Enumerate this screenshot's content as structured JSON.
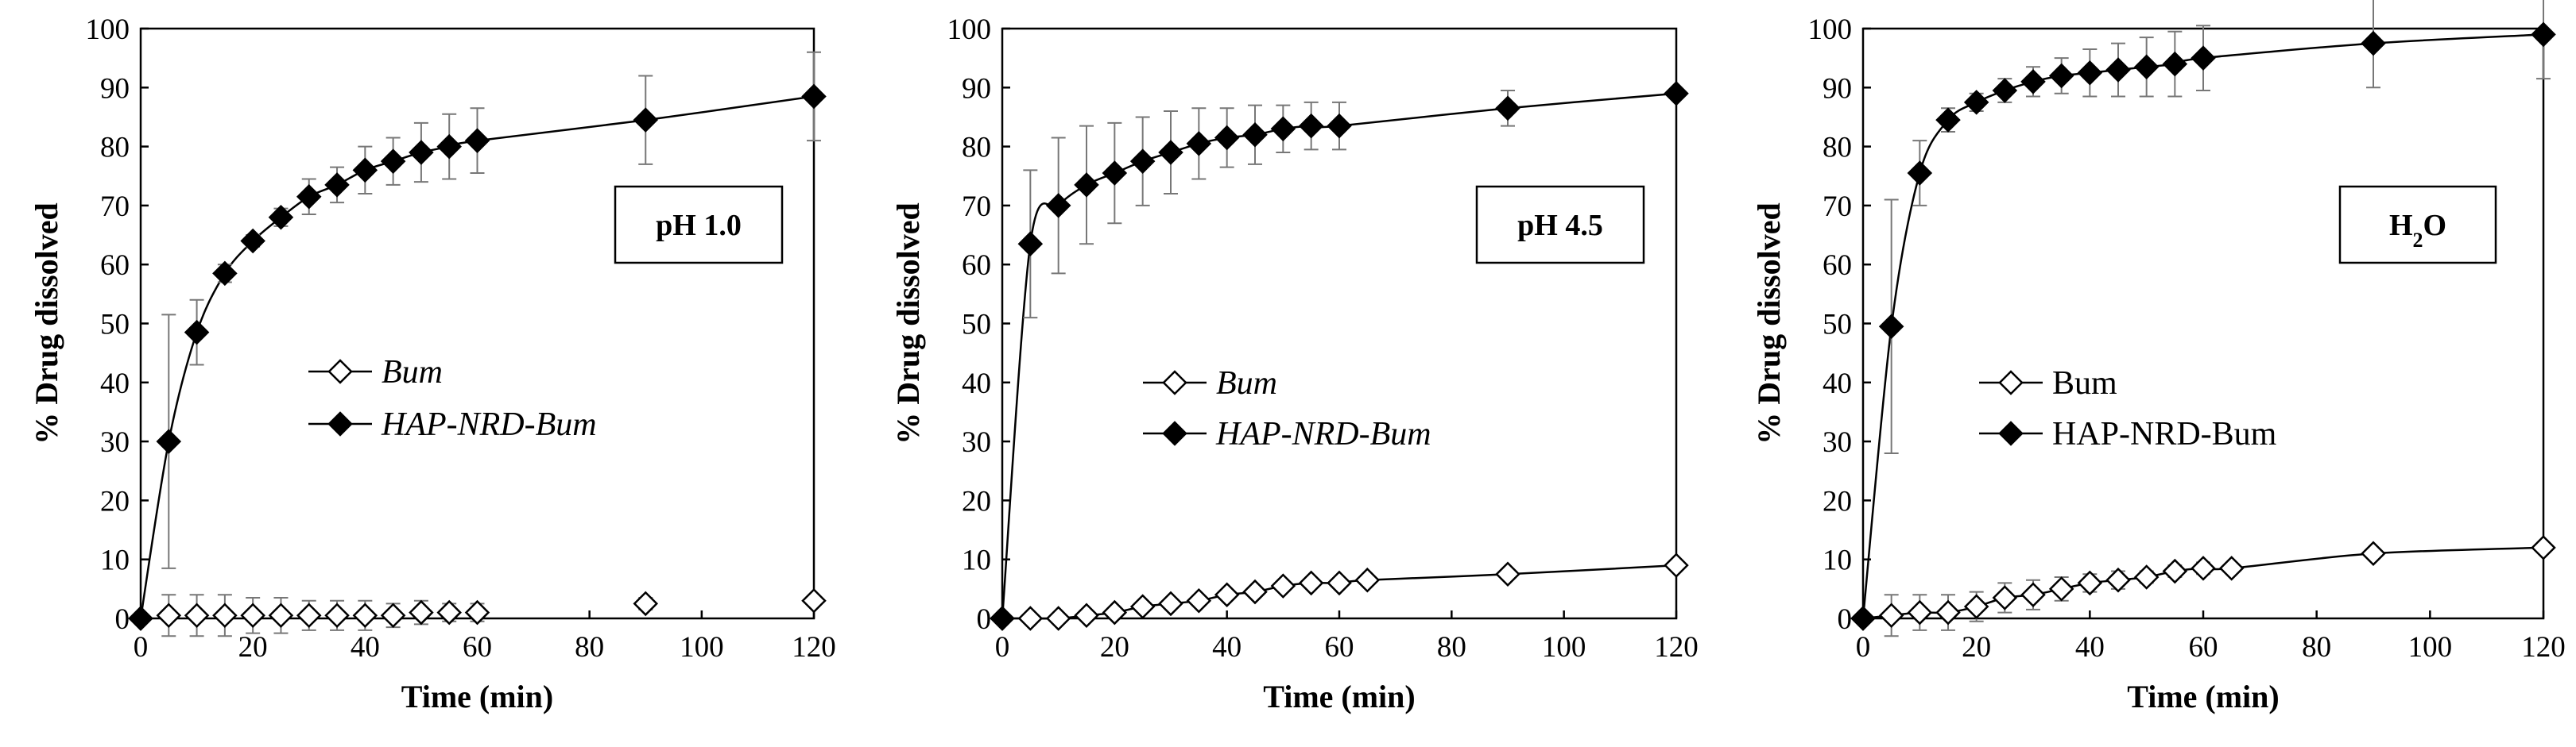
{
  "chart_data": [
    {
      "type": "line",
      "title": "",
      "box_label": "pH 1.0",
      "box_label_sub": "",
      "xlabel": "Time (min)",
      "ylabel": "% Drug dissolved",
      "xlim": [
        0,
        120
      ],
      "ylim": [
        0,
        100
      ],
      "xticks": [
        0,
        20,
        40,
        60,
        80,
        100,
        120
      ],
      "yticks": [
        0,
        10,
        20,
        30,
        40,
        50,
        60,
        70,
        80,
        90,
        100
      ],
      "grid": false,
      "legend_italic": true,
      "legend_placement": "center-left",
      "series": [
        {
          "name": "Bum",
          "marker": "open-diamond",
          "line": false,
          "x": [
            0,
            5,
            10,
            15,
            20,
            25,
            30,
            35,
            40,
            45,
            50,
            55,
            60,
            90,
            120
          ],
          "values": [
            0,
            0.5,
            0.5,
            0.5,
            0.5,
            0.5,
            0.5,
            0.5,
            0.5,
            0.5,
            1,
            1,
            1,
            2.5,
            3
          ],
          "errors": [
            0,
            3.5,
            3.5,
            3.5,
            3,
            3,
            2.5,
            2.5,
            2.5,
            2,
            2,
            1.5,
            1.5,
            1,
            0.5
          ]
        },
        {
          "name": "HAP-NRD-Bum",
          "marker": "filled-diamond",
          "line": true,
          "x": [
            0,
            5,
            10,
            15,
            20,
            25,
            30,
            35,
            40,
            45,
            50,
            55,
            60,
            90,
            120
          ],
          "values": [
            0,
            30,
            48.5,
            58.5,
            64,
            68,
            71.5,
            73.5,
            76,
            77.5,
            79,
            80,
            81,
            84.5,
            88.5
          ],
          "errors": [
            0,
            21.5,
            5.5,
            1.5,
            1,
            1.5,
            3,
            3,
            4,
            4,
            5,
            5.5,
            5.5,
            7.5,
            7.5
          ]
        }
      ]
    },
    {
      "type": "line",
      "title": "",
      "box_label": "pH 4.5",
      "box_label_sub": "",
      "xlabel": "Time (min)",
      "ylabel": "% Drug dissolved",
      "xlim": [
        0,
        120
      ],
      "ylim": [
        0,
        100
      ],
      "xticks": [
        0,
        20,
        40,
        60,
        80,
        100,
        120
      ],
      "yticks": [
        0,
        10,
        20,
        30,
        40,
        50,
        60,
        70,
        80,
        90,
        100
      ],
      "grid": false,
      "legend_italic": true,
      "legend_placement": "center-left",
      "series": [
        {
          "name": "Bum",
          "marker": "open-diamond",
          "line": true,
          "x": [
            0,
            5,
            10,
            15,
            20,
            25,
            30,
            35,
            40,
            45,
            50,
            55,
            60,
            65,
            90,
            120
          ],
          "values": [
            0,
            0,
            0,
            0.5,
            1,
            2,
            2.5,
            3,
            4,
            4.5,
            5.5,
            6,
            6,
            6.5,
            7.5,
            9
          ],
          "errors": [
            0,
            0,
            0,
            0,
            0,
            0,
            0,
            0,
            0,
            0,
            0,
            0,
            0,
            0,
            0,
            0
          ]
        },
        {
          "name": "HAP-NRD-Bum",
          "marker": "filled-diamond",
          "line": true,
          "x": [
            0,
            5,
            10,
            15,
            20,
            25,
            30,
            35,
            40,
            45,
            50,
            55,
            60,
            90,
            120
          ],
          "values": [
            0,
            63.5,
            70,
            73.5,
            75.5,
            77.5,
            79,
            80.5,
            81.5,
            82,
            83,
            83.5,
            83.5,
            86.5,
            89
          ],
          "errors": [
            0,
            12.5,
            11.5,
            10,
            8.5,
            7.5,
            7,
            6,
            5,
            5,
            4,
            4,
            4,
            3,
            0
          ]
        }
      ]
    },
    {
      "type": "line",
      "title": "",
      "box_label": "H",
      "box_label_sub": "2",
      "box_label_tail": "O",
      "xlabel": "Time (min)",
      "ylabel": "% Drug dissolved",
      "xlim": [
        0,
        120
      ],
      "ylim": [
        0,
        100
      ],
      "xticks": [
        0,
        20,
        40,
        60,
        80,
        100,
        120
      ],
      "yticks": [
        0,
        10,
        20,
        30,
        40,
        50,
        60,
        70,
        80,
        90,
        100
      ],
      "grid": false,
      "legend_italic": false,
      "legend_placement": "center-left",
      "series": [
        {
          "name": "Bum",
          "marker": "open-diamond",
          "line": true,
          "x": [
            0,
            5,
            10,
            15,
            20,
            25,
            30,
            35,
            40,
            45,
            50,
            55,
            60,
            65,
            90,
            120
          ],
          "values": [
            0,
            0.5,
            1,
            1,
            2,
            3.5,
            4,
            5,
            6,
            6.5,
            7,
            8,
            8.5,
            8.5,
            11,
            12
          ],
          "errors": [
            0,
            3.5,
            3,
            3,
            2.5,
            2.5,
            2.5,
            2,
            1.5,
            1.5,
            1,
            1,
            1,
            0.5,
            0.5,
            0
          ]
        },
        {
          "name": "HAP-NRD-Bum",
          "marker": "filled-diamond",
          "line": true,
          "x": [
            0,
            5,
            10,
            15,
            20,
            25,
            30,
            35,
            40,
            45,
            50,
            55,
            60,
            90,
            120
          ],
          "values": [
            0,
            49.5,
            75.5,
            84.5,
            87.5,
            89.5,
            91,
            92,
            92.5,
            93,
            93.5,
            94,
            95,
            97.5,
            99
          ],
          "errors": [
            0,
            21.5,
            5.5,
            2,
            1.5,
            2,
            2.5,
            3,
            4,
            4.5,
            5,
            5.5,
            5.5,
            7.5,
            7.5
          ]
        }
      ]
    }
  ]
}
